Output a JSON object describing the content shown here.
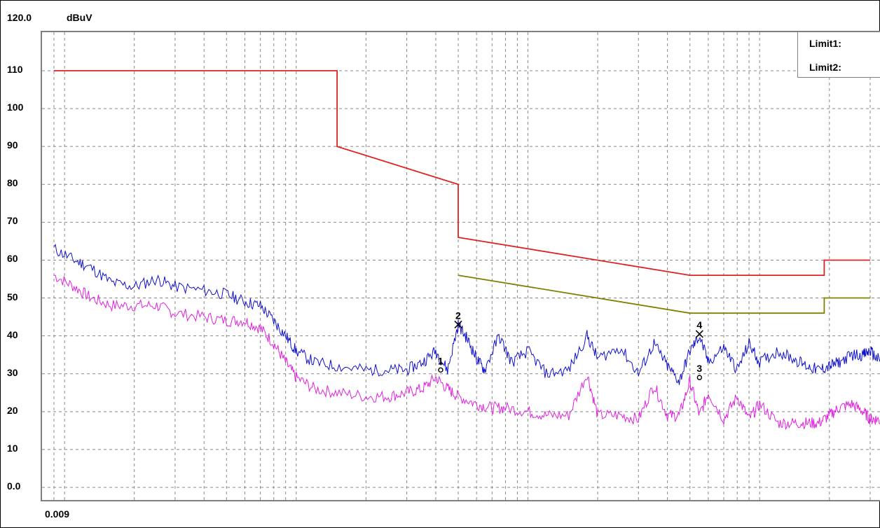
{
  "chart_data": {
    "type": "line",
    "title": "",
    "ylabel": "dBuV",
    "y_top_label": "120.0",
    "y_tick_labels": [
      "110",
      "100",
      "90",
      "80",
      "70",
      "60",
      "50",
      "40",
      "30",
      "20",
      "10",
      "0.0"
    ],
    "x_start_label": "0.009",
    "ylim": [
      0,
      120
    ],
    "xlim": [
      0.009,
      30
    ],
    "x_scale": "log",
    "grid": true,
    "legend_position": "top-right",
    "legend": [
      "Limit1:",
      "Limit2:"
    ],
    "colors": {
      "limit1": "#dd2222",
      "limit2": "#808000",
      "peak": "#1010cc",
      "average": "#e020e0",
      "grid": "#888888"
    },
    "series": [
      {
        "name": "Limit1:",
        "color": "#dd2222",
        "points": [
          [
            0.009,
            110
          ],
          [
            0.15,
            110
          ],
          [
            0.15,
            90
          ],
          [
            0.5,
            80
          ],
          [
            0.5,
            66
          ],
          [
            5,
            56
          ],
          [
            30,
            56
          ]
        ],
        "extra_segments": [
          [
            [
              30,
              56
            ],
            [
              30,
              60
            ]
          ],
          [
            [
              30,
              60
            ],
            [
              30,
              60
            ]
          ]
        ]
      },
      {
        "name": "Limit2:",
        "color": "#808000",
        "points": [
          [
            0.5,
            56
          ],
          [
            5,
            46
          ],
          [
            30,
            46
          ]
        ]
      }
    ],
    "limit1_steps": [
      [
        0.009,
        110
      ],
      [
        0.15,
        110
      ],
      [
        0.15,
        90
      ],
      [
        0.5,
        80
      ],
      [
        0.5,
        66
      ],
      [
        5,
        56
      ],
      [
        19,
        56
      ],
      [
        19,
        60
      ],
      [
        30,
        60
      ]
    ],
    "limit2_steps": [
      [
        0.5,
        56
      ],
      [
        5,
        46
      ],
      [
        19,
        46
      ],
      [
        19,
        50
      ],
      [
        30,
        50
      ]
    ],
    "peak_trace": [
      [
        0.009,
        63
      ],
      [
        0.011,
        60
      ],
      [
        0.013,
        58
      ],
      [
        0.016,
        54
      ],
      [
        0.02,
        53
      ],
      [
        0.025,
        55
      ],
      [
        0.03,
        53
      ],
      [
        0.04,
        52
      ],
      [
        0.05,
        51
      ],
      [
        0.06,
        49
      ],
      [
        0.07,
        48
      ],
      [
        0.08,
        44
      ],
      [
        0.09,
        40
      ],
      [
        0.1,
        36
      ],
      [
        0.12,
        33
      ],
      [
        0.15,
        32
      ],
      [
        0.2,
        31
      ],
      [
        0.25,
        31
      ],
      [
        0.3,
        31
      ],
      [
        0.35,
        33
      ],
      [
        0.4,
        36
      ],
      [
        0.45,
        31
      ],
      [
        0.5,
        43
      ],
      [
        0.55,
        39
      ],
      [
        0.6,
        34
      ],
      [
        0.65,
        31
      ],
      [
        0.75,
        40
      ],
      [
        0.85,
        33
      ],
      [
        1,
        36
      ],
      [
        1.2,
        30
      ],
      [
        1.5,
        31
      ],
      [
        1.8,
        40
      ],
      [
        2,
        34
      ],
      [
        2.5,
        37
      ],
      [
        3,
        30
      ],
      [
        3.5,
        38
      ],
      [
        4,
        32
      ],
      [
        4.5,
        28
      ],
      [
        5,
        36
      ],
      [
        5.5,
        40
      ],
      [
        6,
        33
      ],
      [
        7,
        37
      ],
      [
        8,
        31
      ],
      [
        9,
        38
      ],
      [
        10,
        33
      ],
      [
        12,
        36
      ],
      [
        14,
        34
      ],
      [
        16,
        32
      ],
      [
        18,
        31
      ],
      [
        20,
        32
      ],
      [
        22,
        33
      ],
      [
        25,
        35
      ],
      [
        28,
        35
      ],
      [
        30,
        36
      ],
      [
        32,
        34
      ],
      [
        35,
        33
      ]
    ],
    "average_trace": [
      [
        0.009,
        56
      ],
      [
        0.011,
        53
      ],
      [
        0.013,
        50
      ],
      [
        0.016,
        48
      ],
      [
        0.02,
        48
      ],
      [
        0.025,
        48
      ],
      [
        0.03,
        46
      ],
      [
        0.04,
        45
      ],
      [
        0.05,
        44
      ],
      [
        0.06,
        44
      ],
      [
        0.07,
        42
      ],
      [
        0.08,
        38
      ],
      [
        0.09,
        33
      ],
      [
        0.1,
        29
      ],
      [
        0.12,
        26
      ],
      [
        0.15,
        25
      ],
      [
        0.2,
        24
      ],
      [
        0.25,
        24
      ],
      [
        0.3,
        25
      ],
      [
        0.35,
        26
      ],
      [
        0.4,
        29
      ],
      [
        0.45,
        26
      ],
      [
        0.5,
        24
      ],
      [
        0.6,
        22
      ],
      [
        0.7,
        21
      ],
      [
        0.8,
        21
      ],
      [
        1,
        20
      ],
      [
        1.2,
        19
      ],
      [
        1.5,
        19
      ],
      [
        1.8,
        30
      ],
      [
        2,
        19
      ],
      [
        2.5,
        19
      ],
      [
        3,
        18
      ],
      [
        3.5,
        27
      ],
      [
        4,
        19
      ],
      [
        4.5,
        19
      ],
      [
        5,
        28
      ],
      [
        5.5,
        19
      ],
      [
        6,
        25
      ],
      [
        7,
        18
      ],
      [
        8,
        24
      ],
      [
        9,
        18
      ],
      [
        10,
        22
      ],
      [
        12,
        17
      ],
      [
        14,
        17
      ],
      [
        16,
        17
      ],
      [
        18,
        17
      ],
      [
        20,
        19
      ],
      [
        22,
        21
      ],
      [
        25,
        22
      ],
      [
        28,
        20
      ],
      [
        30,
        18
      ],
      [
        32,
        18
      ],
      [
        35,
        17
      ]
    ],
    "markers": [
      {
        "label": "1",
        "freq": 0.42,
        "level": 31,
        "type": "o"
      },
      {
        "label": "2",
        "freq": 0.5,
        "level": 43,
        "type": "x"
      },
      {
        "label": "3",
        "freq": 5.5,
        "level": 29,
        "type": "o"
      },
      {
        "label": "4",
        "freq": 5.5,
        "level": 40.5,
        "type": "x"
      }
    ]
  }
}
